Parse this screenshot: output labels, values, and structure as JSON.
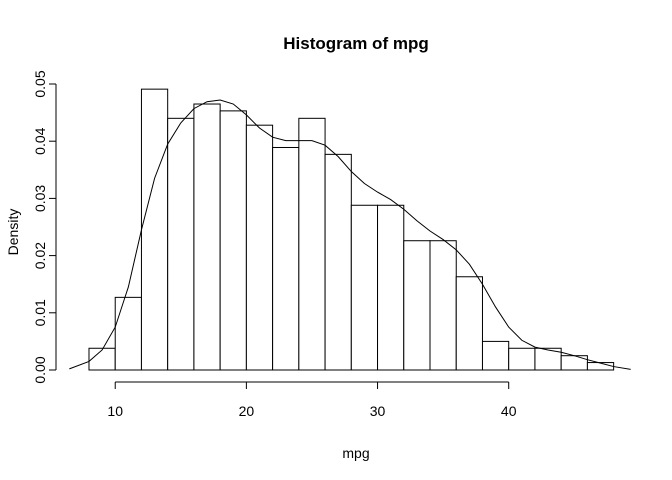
{
  "chart_data": {
    "type": "bar",
    "title": "Histogram of mpg",
    "xlabel": "mpg",
    "ylabel": "Density",
    "xlim": [
      6.4,
      49.4
    ],
    "ylim": [
      0,
      0.05
    ],
    "x_ticks": [
      10,
      20,
      30,
      40
    ],
    "y_ticks": [
      0.0,
      0.01,
      0.02,
      0.03,
      0.04,
      0.05
    ],
    "x_tick_labels": [
      "10",
      "20",
      "30",
      "40"
    ],
    "y_tick_labels": [
      "0.00",
      "0.01",
      "0.02",
      "0.03",
      "0.04",
      "0.05"
    ],
    "bin_edges": [
      8,
      10,
      12,
      14,
      16,
      18,
      20,
      22,
      24,
      26,
      28,
      30,
      32,
      34,
      36,
      38,
      40,
      42,
      44,
      46,
      48
    ],
    "values": [
      0.0038,
      0.0127,
      0.0491,
      0.044,
      0.0465,
      0.0453,
      0.0428,
      0.0389,
      0.044,
      0.0377,
      0.0288,
      0.0288,
      0.0226,
      0.0226,
      0.0163,
      0.005,
      0.0038,
      0.0038,
      0.0025,
      0.0013
    ],
    "density_curve": {
      "x": [
        6.5,
        8,
        9,
        10,
        11,
        12,
        13,
        14,
        15,
        16,
        17,
        18,
        19,
        20,
        21,
        22,
        23,
        24,
        25,
        26,
        27,
        28,
        29,
        30,
        31,
        32,
        33,
        34,
        35,
        36,
        37,
        38,
        39,
        40,
        41,
        42,
        43,
        44,
        45,
        46,
        47,
        48,
        49.3
      ],
      "y": [
        0.0002,
        0.0015,
        0.0035,
        0.0075,
        0.0145,
        0.0245,
        0.0335,
        0.0395,
        0.0432,
        0.0457,
        0.0469,
        0.0472,
        0.0465,
        0.0446,
        0.0423,
        0.0407,
        0.0401,
        0.0401,
        0.0401,
        0.0393,
        0.0373,
        0.0347,
        0.0326,
        0.0311,
        0.0298,
        0.0281,
        0.0261,
        0.0243,
        0.0228,
        0.021,
        0.0185,
        0.015,
        0.011,
        0.0075,
        0.0052,
        0.004,
        0.0035,
        0.0031,
        0.0025,
        0.0018,
        0.0012,
        0.0006,
        0.0001
      ]
    },
    "grid": false,
    "legend": "none"
  }
}
